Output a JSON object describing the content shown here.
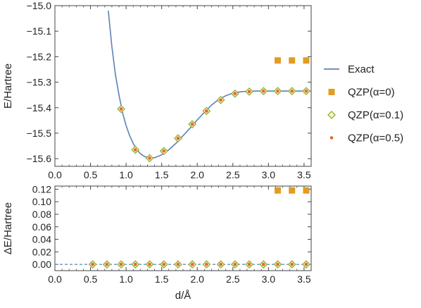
{
  "chart_data": [
    {
      "type": "line",
      "panel": "top",
      "ylabel": "E/Hartree",
      "xlabel": "",
      "xlim": [
        0.0,
        3.6
      ],
      "ylim": [
        -15.63,
        -15.0
      ],
      "xticks": [
        "0.0",
        "0.5",
        "1.0",
        "1.5",
        "2.0",
        "2.5",
        "3.0",
        "3.5"
      ],
      "yticks": [
        "-15.0",
        "-15.1",
        "-15.2",
        "-15.3",
        "-15.4",
        "-15.5",
        "-15.6"
      ],
      "grid": false,
      "exact_curve": {
        "x": [
          0.75,
          0.8,
          0.85,
          0.9,
          0.95,
          1.0,
          1.05,
          1.1,
          1.15,
          1.2,
          1.25,
          1.3,
          1.35,
          1.4,
          1.5,
          1.6,
          1.7,
          1.8,
          1.9,
          2.0,
          2.1,
          2.2,
          2.3,
          2.4,
          2.5,
          2.6,
          2.7,
          2.8,
          3.0,
          3.2,
          3.4,
          3.6
        ],
        "y": [
          -15.02,
          -15.16,
          -15.27,
          -15.35,
          -15.42,
          -15.47,
          -15.51,
          -15.54,
          -15.565,
          -15.58,
          -15.59,
          -15.595,
          -15.598,
          -15.596,
          -15.585,
          -15.565,
          -15.54,
          -15.51,
          -15.48,
          -15.448,
          -15.418,
          -15.39,
          -15.368,
          -15.353,
          -15.343,
          -15.338,
          -15.336,
          -15.335,
          -15.335,
          -15.335,
          -15.335,
          -15.335
        ]
      },
      "series": [
        {
          "name": "QZP(α=0)",
          "x": [
            3.13,
            3.33,
            3.53
          ],
          "y": [
            -15.215,
            -15.215,
            -15.215
          ]
        },
        {
          "name": "QZP(α=0.1)",
          "x": [
            0.93,
            1.13,
            1.33,
            1.53,
            1.73,
            1.93,
            2.13,
            2.33,
            2.53,
            2.73,
            2.93,
            3.13,
            3.33,
            3.53
          ],
          "y": [
            -15.405,
            -15.565,
            -15.598,
            -15.57,
            -15.52,
            -15.465,
            -15.413,
            -15.37,
            -15.345,
            -15.337,
            -15.335,
            -15.335,
            -15.335,
            -15.335
          ]
        },
        {
          "name": "QZP(α=0.5)",
          "x": [
            0.93,
            1.13,
            1.33,
            1.53,
            1.73,
            1.93,
            2.13,
            2.33,
            2.53,
            2.73,
            2.93,
            3.13,
            3.33,
            3.53
          ],
          "y": [
            -15.405,
            -15.565,
            -15.598,
            -15.57,
            -15.52,
            -15.465,
            -15.413,
            -15.37,
            -15.345,
            -15.337,
            -15.335,
            -15.335,
            -15.335,
            -15.335
          ]
        }
      ]
    },
    {
      "type": "scatter",
      "panel": "bottom",
      "ylabel": "ΔE/Hartree",
      "xlabel": "d/Å",
      "xlim": [
        0.0,
        3.6
      ],
      "ylim": [
        -0.01,
        0.125
      ],
      "xticks": [
        "0.0",
        "0.5",
        "1.0",
        "1.5",
        "2.0",
        "2.5",
        "3.0",
        "3.5"
      ],
      "yticks": [
        "0.00",
        "0.02",
        "0.04",
        "0.06",
        "0.08",
        "0.10",
        "0.12"
      ],
      "grid": false,
      "series": [
        {
          "name": "QZP(α=0)",
          "x": [
            3.13,
            3.33,
            3.53
          ],
          "y": [
            0.118,
            0.118,
            0.118
          ]
        },
        {
          "name": "QZP(α=0.1)",
          "x": [
            0.53,
            0.73,
            0.93,
            1.13,
            1.33,
            1.53,
            1.73,
            1.93,
            2.13,
            2.33,
            2.53,
            2.73,
            2.93,
            3.13,
            3.33,
            3.53
          ],
          "y": [
            0,
            0,
            0,
            0,
            0,
            0,
            0,
            0,
            0,
            0,
            0,
            0,
            0,
            0,
            0,
            0
          ]
        },
        {
          "name": "QZP(α=0.5)",
          "x": [
            0.53,
            0.73,
            0.93,
            1.13,
            1.33,
            1.53,
            1.73,
            1.93,
            2.13,
            2.33,
            2.53,
            2.73,
            2.93,
            3.13,
            3.33,
            3.53
          ],
          "y": [
            0,
            0,
            0,
            0,
            0,
            0,
            0,
            0,
            0,
            0,
            0,
            0,
            0,
            0,
            0,
            0
          ]
        }
      ]
    }
  ],
  "legend": {
    "placement": "right",
    "entries": [
      "Exact",
      "QZP(α=0)",
      "QZP(α=0.1)",
      "QZP(α=0.5)"
    ]
  },
  "colors": {
    "exact": "#5e81b5",
    "alpha0": "#e19c24",
    "alpha01_stroke": "#8fb131",
    "alpha05": "#eb6235",
    "axis": "#444444"
  }
}
